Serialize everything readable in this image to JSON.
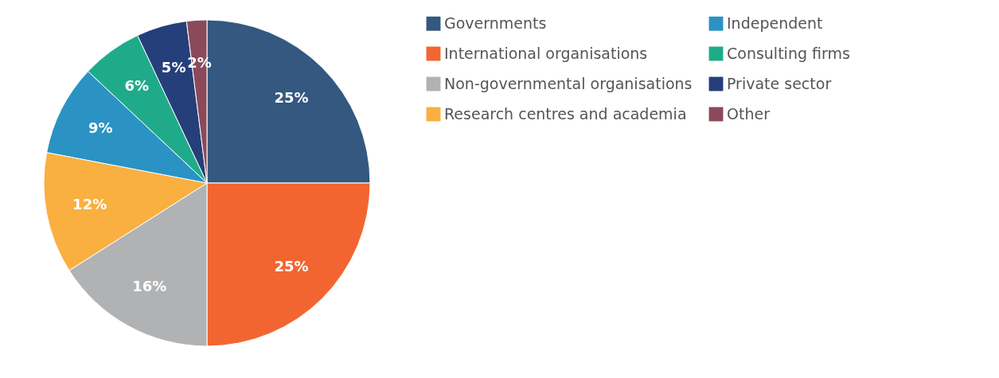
{
  "chart_data": {
    "type": "pie",
    "categories": [
      "Governments",
      "International organisations",
      "Non-governmental organisations",
      "Research centres and academia",
      "Independent",
      "Consulting firms",
      "Private sector",
      "Other"
    ],
    "values": [
      25,
      25,
      16,
      12,
      9,
      6,
      5,
      2
    ],
    "colors": [
      "#34587f",
      "#f26531",
      "#b1b2b4",
      "#f9b040",
      "#2a93c4",
      "#1fab8a",
      "#253f7a",
      "#8a4a5a"
    ],
    "value_labels": [
      "25%",
      "25%",
      "16%",
      "12%",
      "9%",
      "6%",
      "5%",
      "2%"
    ],
    "legend": "right"
  }
}
